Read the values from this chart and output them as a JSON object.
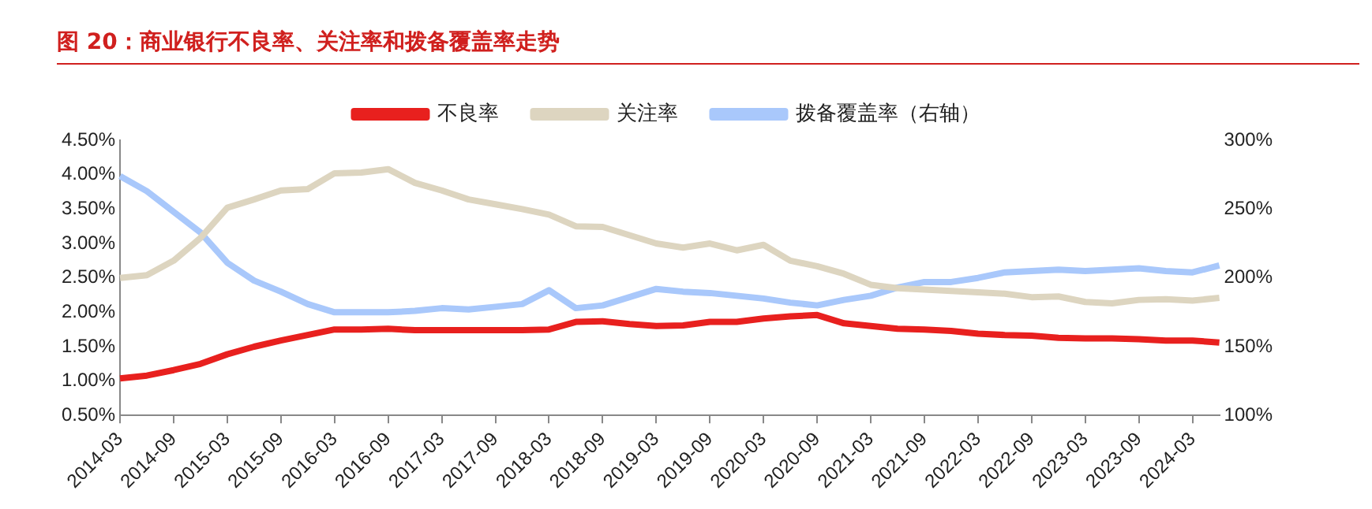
{
  "chart_data": {
    "type": "line",
    "title": "图 20：商业银行不良率、关注率和拨备覆盖率走势",
    "categories": [
      "2014-03",
      null,
      "2014-09",
      null,
      "2015-03",
      null,
      "2015-09",
      null,
      "2016-03",
      null,
      "2016-09",
      null,
      "2017-03",
      null,
      "2017-09",
      null,
      "2018-03",
      null,
      "2018-09",
      null,
      "2019-03",
      null,
      "2019-09",
      null,
      "2020-03",
      null,
      "2020-09",
      null,
      "2021-03",
      null,
      "2021-09",
      null,
      "2022-03",
      null,
      "2022-09",
      null,
      "2023-03",
      null,
      "2023-09",
      null,
      "2024-03",
      null
    ],
    "series": [
      {
        "name": "不良率",
        "color": "#e8201e",
        "values": [
          1.04,
          1.08,
          1.16,
          1.25,
          1.39,
          1.5,
          1.59,
          1.67,
          1.75,
          1.75,
          1.76,
          1.74,
          1.74,
          1.74,
          1.74,
          1.74,
          1.75,
          1.86,
          1.87,
          1.83,
          1.8,
          1.81,
          1.86,
          1.86,
          1.91,
          1.94,
          1.96,
          1.84,
          1.8,
          1.76,
          1.75,
          1.73,
          1.69,
          1.67,
          1.66,
          1.63,
          1.62,
          1.62,
          1.61,
          1.59,
          1.59,
          1.56
        ]
      },
      {
        "name": "关注率",
        "color": "#ddd5c0",
        "values": [
          2.5,
          2.54,
          2.75,
          3.08,
          3.52,
          3.64,
          3.77,
          3.79,
          4.02,
          4.03,
          4.08,
          3.88,
          3.77,
          3.64,
          3.57,
          3.5,
          3.42,
          3.25,
          3.24,
          3.12,
          3.0,
          2.94,
          3.0,
          2.9,
          2.98,
          2.75,
          2.67,
          2.56,
          2.4,
          2.35,
          2.33,
          2.31,
          2.29,
          2.27,
          2.22,
          2.23,
          2.15,
          2.13,
          2.18,
          2.19,
          2.17,
          2.21
        ]
      },
      {
        "name": "拨备覆盖率（右轴）",
        "color": "#a9c8fb",
        "axis": "y2",
        "values": [
          274,
          263,
          248,
          233,
          211,
          198,
          190,
          181,
          175,
          175,
          175,
          176,
          178,
          177,
          179,
          181,
          191,
          178,
          180,
          186,
          192,
          190,
          189,
          187,
          185,
          182,
          180,
          184,
          187,
          193,
          197,
          197,
          200,
          204,
          205,
          206,
          205,
          206,
          207,
          205,
          204,
          209
        ]
      }
    ],
    "ylim": [
      0.5,
      4.5
    ],
    "yticks": [
      {
        "value": 0.5,
        "label": "0.50%"
      },
      {
        "value": 1,
        "label": "1.00%"
      },
      {
        "value": 1.5,
        "label": "1.50%"
      },
      {
        "value": 2,
        "label": "2.00%"
      },
      {
        "value": 2.5,
        "label": "2.50%"
      },
      {
        "value": 3,
        "label": "3.00%"
      },
      {
        "value": 3.5,
        "label": "3.50%"
      },
      {
        "value": 4,
        "label": "4.00%"
      },
      {
        "value": 4.5,
        "label": "4.50%"
      }
    ],
    "y2lim": [
      100,
      300
    ],
    "y2ticks": [
      {
        "value": 100,
        "label": "100%"
      },
      {
        "value": 150,
        "label": "150%"
      },
      {
        "value": 200,
        "label": "200%"
      },
      {
        "value": 250,
        "label": "250%"
      },
      {
        "value": 300,
        "label": "300%"
      }
    ],
    "grid": false,
    "legend": "top",
    "marker": "none",
    "line_style": "solid"
  }
}
